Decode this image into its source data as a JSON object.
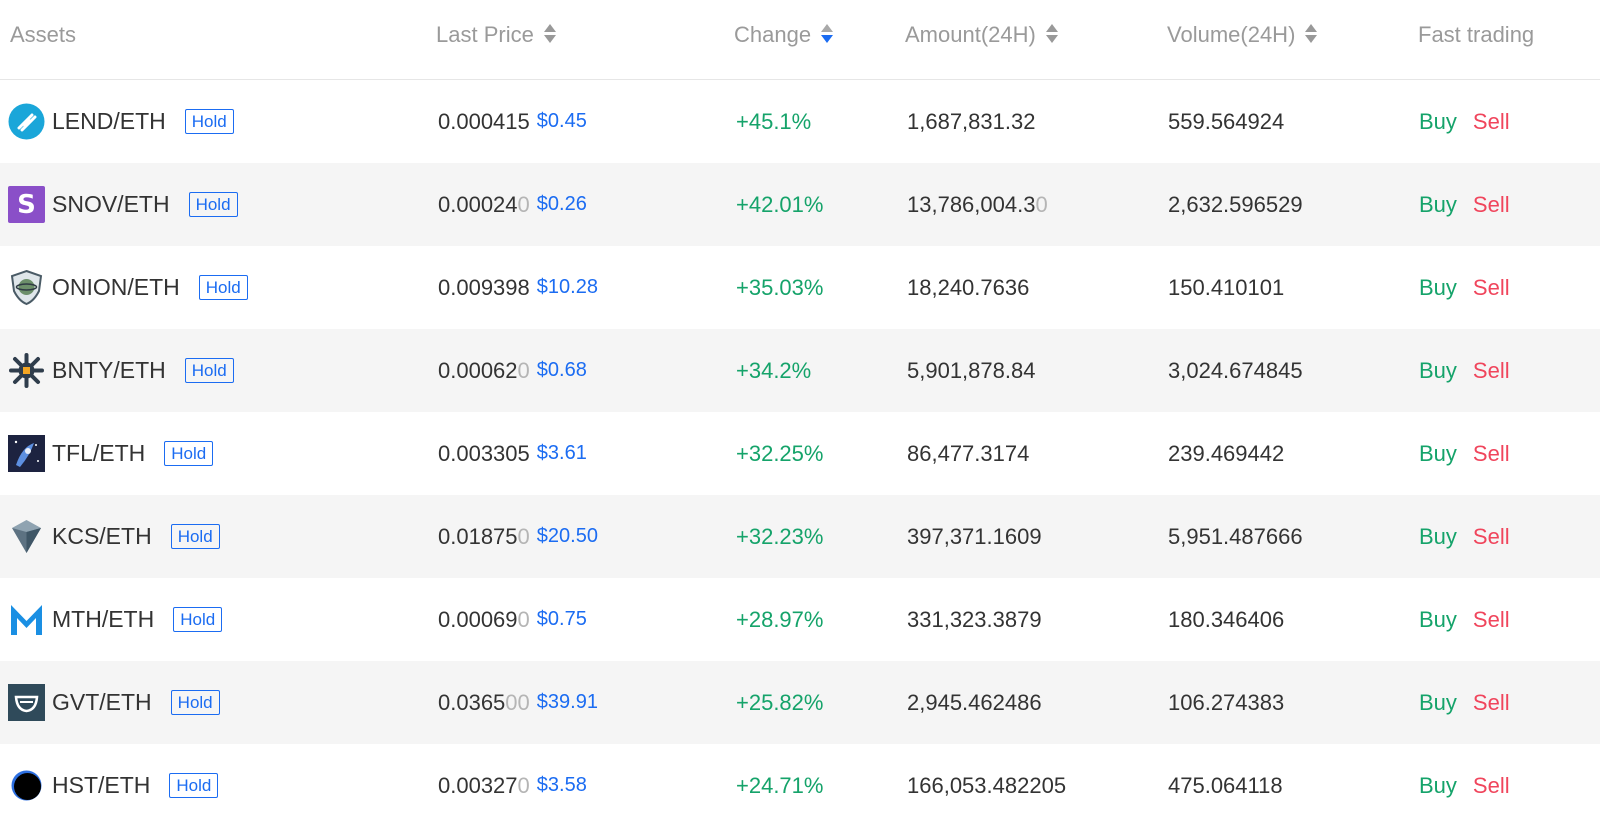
{
  "header": {
    "assets": "Assets",
    "last_price": "Last Price",
    "change": "Change",
    "amount": "Amount(24H)",
    "volume": "Volume(24H)",
    "fast_trading": "Fast trading"
  },
  "rows": [
    {
      "pair": "LEND/ETH",
      "hold": "Hold",
      "price": "0.000415",
      "price_dim": "",
      "usd": "$0.45",
      "change": "+45.1%",
      "amount_main": "1,687,831.32",
      "amount_dim": "",
      "volume": "559.564924",
      "buy": "Buy",
      "sell": "Sell",
      "icon": "lend-icon"
    },
    {
      "pair": "SNOV/ETH",
      "hold": "Hold",
      "price": "0.00024",
      "price_dim": "0",
      "usd": "$0.26",
      "change": "+42.01%",
      "amount_main": "13,786,004.3",
      "amount_dim": "0",
      "volume": "2,632.596529",
      "buy": "Buy",
      "sell": "Sell",
      "icon": "snov-icon"
    },
    {
      "pair": "ONION/ETH",
      "hold": "Hold",
      "price": "0.009398",
      "price_dim": "",
      "usd": "$10.28",
      "change": "+35.03%",
      "amount_main": "18,240.7636",
      "amount_dim": "",
      "volume": "150.410101",
      "buy": "Buy",
      "sell": "Sell",
      "icon": "onion-icon"
    },
    {
      "pair": "BNTY/ETH",
      "hold": "Hold",
      "price": "0.00062",
      "price_dim": "0",
      "usd": "$0.68",
      "change": "+34.2%",
      "amount_main": "5,901,878.84",
      "amount_dim": "",
      "volume": "3,024.674845",
      "buy": "Buy",
      "sell": "Sell",
      "icon": "bnty-icon"
    },
    {
      "pair": "TFL/ETH",
      "hold": "Hold",
      "price": "0.003305",
      "price_dim": "",
      "usd": "$3.61",
      "change": "+32.25%",
      "amount_main": "86,477.3174",
      "amount_dim": "",
      "volume": "239.469442",
      "buy": "Buy",
      "sell": "Sell",
      "icon": "tfl-icon"
    },
    {
      "pair": "KCS/ETH",
      "hold": "Hold",
      "price": "0.01875",
      "price_dim": "0",
      "usd": "$20.50",
      "change": "+32.23%",
      "amount_main": "397,371.1609",
      "amount_dim": "",
      "volume": "5,951.487666",
      "buy": "Buy",
      "sell": "Sell",
      "icon": "kcs-icon"
    },
    {
      "pair": "MTH/ETH",
      "hold": "Hold",
      "price": "0.00069",
      "price_dim": "0",
      "usd": "$0.75",
      "change": "+28.97%",
      "amount_main": "331,323.3879",
      "amount_dim": "",
      "volume": "180.346406",
      "buy": "Buy",
      "sell": "Sell",
      "icon": "mth-icon"
    },
    {
      "pair": "GVT/ETH",
      "hold": "Hold",
      "price": "0.0365",
      "price_dim": "00",
      "usd": "$39.91",
      "change": "+25.82%",
      "amount_main": "2,945.462486",
      "amount_dim": "",
      "volume": "106.274383",
      "buy": "Buy",
      "sell": "Sell",
      "icon": "gvt-icon"
    },
    {
      "pair": "HST/ETH",
      "hold": "Hold",
      "price": "0.00327",
      "price_dim": "0",
      "usd": "$3.58",
      "change": "+24.71%",
      "amount_main": "166,053.482205",
      "amount_dim": "",
      "volume": "475.064118",
      "buy": "Buy",
      "sell": "Sell",
      "icon": "hst-icon"
    }
  ],
  "colors": {
    "positive": "#15a36a",
    "negative": "#f0455c",
    "accent": "#1b6cf2",
    "muted": "#9a9a9a"
  }
}
